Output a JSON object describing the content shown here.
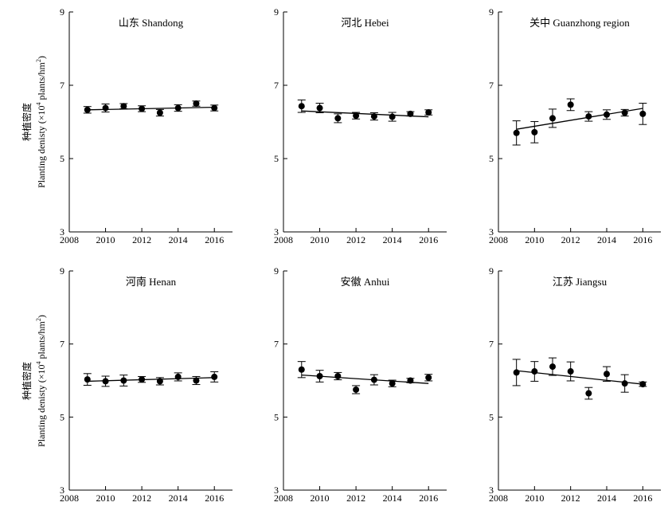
{
  "chart_data": [
    {
      "type": "scatter",
      "title": "山东 Shandong",
      "x": [
        2009,
        2010,
        2011,
        2012,
        2013,
        2014,
        2015,
        2016
      ],
      "y": [
        6.33,
        6.38,
        6.43,
        6.36,
        6.25,
        6.38,
        6.5,
        6.38
      ],
      "err": [
        0.09,
        0.11,
        0.07,
        0.08,
        0.09,
        0.09,
        0.07,
        0.08
      ],
      "trend": [
        6.33,
        6.4
      ],
      "xlim": [
        2008,
        2017
      ],
      "ylim": [
        3,
        9
      ],
      "xticks": [
        2008,
        2010,
        2012,
        2014,
        2016
      ],
      "yticks": [
        3,
        5,
        7,
        9
      ]
    },
    {
      "type": "scatter",
      "title": "河北 Hebei",
      "x": [
        2009,
        2010,
        2011,
        2012,
        2013,
        2014,
        2015,
        2016
      ],
      "y": [
        6.43,
        6.38,
        6.1,
        6.17,
        6.15,
        6.14,
        6.22,
        6.26
      ],
      "err": [
        0.17,
        0.13,
        0.12,
        0.09,
        0.1,
        0.12,
        0.06,
        0.07
      ],
      "trend": [
        6.3,
        6.14
      ],
      "xlim": [
        2008,
        2017
      ],
      "ylim": [
        3,
        9
      ],
      "xticks": [
        2008,
        2010,
        2012,
        2014,
        2016
      ],
      "yticks": [
        3,
        5,
        7,
        9
      ]
    },
    {
      "type": "scatter",
      "title": "关中 Guanzhong region",
      "x": [
        2009,
        2010,
        2011,
        2012,
        2013,
        2014,
        2015,
        2016
      ],
      "y": [
        5.7,
        5.72,
        6.1,
        6.47,
        6.15,
        6.2,
        6.25,
        6.22
      ],
      "err": [
        0.33,
        0.29,
        0.25,
        0.16,
        0.13,
        0.13,
        0.09,
        0.29
      ],
      "trend": [
        5.8,
        6.37
      ],
      "xlim": [
        2008,
        2017
      ],
      "ylim": [
        3,
        9
      ],
      "xticks": [
        2008,
        2010,
        2012,
        2014,
        2016
      ],
      "yticks": [
        3,
        5,
        7,
        9
      ]
    },
    {
      "type": "scatter",
      "title": "河南 Henan",
      "x": [
        2009,
        2010,
        2011,
        2012,
        2013,
        2014,
        2015,
        2016
      ],
      "y": [
        6.03,
        5.98,
        6.0,
        6.03,
        5.98,
        6.1,
        6.0,
        6.1
      ],
      "err": [
        0.16,
        0.14,
        0.15,
        0.08,
        0.1,
        0.11,
        0.11,
        0.14
      ],
      "trend": [
        5.98,
        6.08
      ],
      "xlim": [
        2008,
        2017
      ],
      "ylim": [
        3,
        9
      ],
      "xticks": [
        2008,
        2010,
        2012,
        2014,
        2016
      ],
      "yticks": [
        3,
        5,
        7,
        9
      ]
    },
    {
      "type": "scatter",
      "title": "安徽 Anhui",
      "x": [
        2009,
        2010,
        2011,
        2012,
        2013,
        2014,
        2015,
        2016
      ],
      "y": [
        6.3,
        6.12,
        6.12,
        5.75,
        6.02,
        5.92,
        6.0,
        6.08
      ],
      "err": [
        0.22,
        0.16,
        0.1,
        0.11,
        0.14,
        0.09,
        0.06,
        0.09
      ],
      "trend": [
        6.15,
        5.92
      ],
      "xlim": [
        2008,
        2017
      ],
      "ylim": [
        3,
        9
      ],
      "xticks": [
        2008,
        2010,
        2012,
        2014,
        2016
      ],
      "yticks": [
        3,
        5,
        7,
        9
      ]
    },
    {
      "type": "scatter",
      "title": "江苏 Jiangsu",
      "x": [
        2009,
        2010,
        2011,
        2012,
        2013,
        2014,
        2015,
        2016
      ],
      "y": [
        6.22,
        6.25,
        6.38,
        6.25,
        5.65,
        6.18,
        5.92,
        5.9
      ],
      "err": [
        0.36,
        0.27,
        0.24,
        0.26,
        0.16,
        0.2,
        0.24,
        0.06
      ],
      "trend": [
        6.27,
        5.9
      ],
      "xlim": [
        2008,
        2017
      ],
      "ylim": [
        3,
        9
      ],
      "xticks": [
        2008,
        2010,
        2012,
        2014,
        2016
      ],
      "yticks": [
        3,
        5,
        7,
        9
      ]
    }
  ],
  "ylabel_cn": "种植密度",
  "ylabel_en_main": "Planting denisty (×10",
  "ylabel_en_sup": "4",
  "ylabel_en_unit": " plants/hm",
  "ylabel_en_unit_sup": "2",
  "ylabel_en_close": ")"
}
